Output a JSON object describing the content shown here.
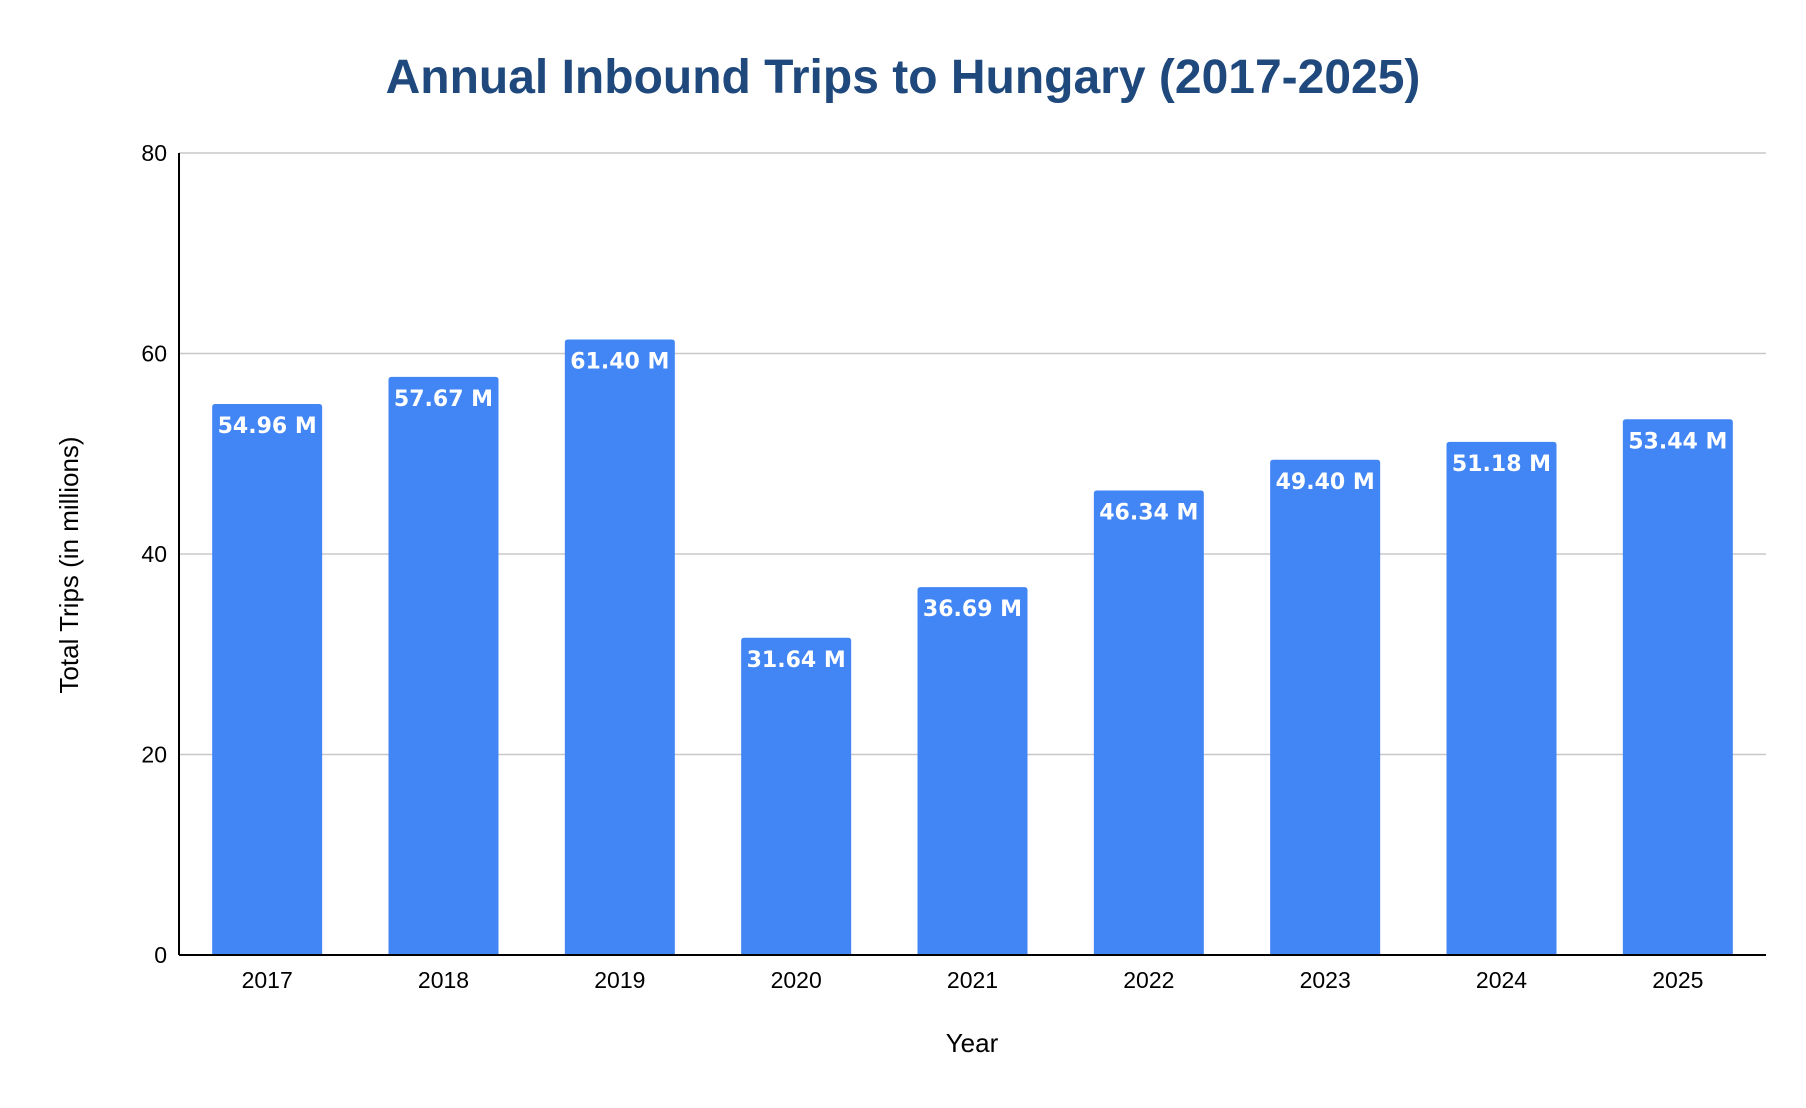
{
  "chart_data": {
    "type": "bar",
    "title": "Annual Inbound Trips to Hungary (2017-2025)",
    "xlabel": "Year",
    "ylabel": "Total Trips (in millions)",
    "categories": [
      "2017",
      "2018",
      "2019",
      "2020",
      "2021",
      "2022",
      "2023",
      "2024",
      "2025"
    ],
    "values": [
      54.96,
      57.67,
      61.4,
      31.64,
      36.69,
      46.34,
      49.4,
      51.18,
      53.44
    ],
    "data_labels": [
      "54.96 M",
      "57.67 M",
      "61.40 M",
      "31.64 M",
      "36.69 M",
      "46.34 M",
      "49.40 M",
      "51.18 M",
      "53.44 M"
    ],
    "ylim": [
      0,
      80
    ],
    "yticks": [
      0,
      20,
      40,
      60,
      80
    ],
    "ytick_labels": [
      "0",
      "20",
      "40",
      "60",
      "80"
    ],
    "grid": true,
    "legend": "none",
    "bar_color": "#4285f4",
    "title_color": "#1f497d"
  }
}
